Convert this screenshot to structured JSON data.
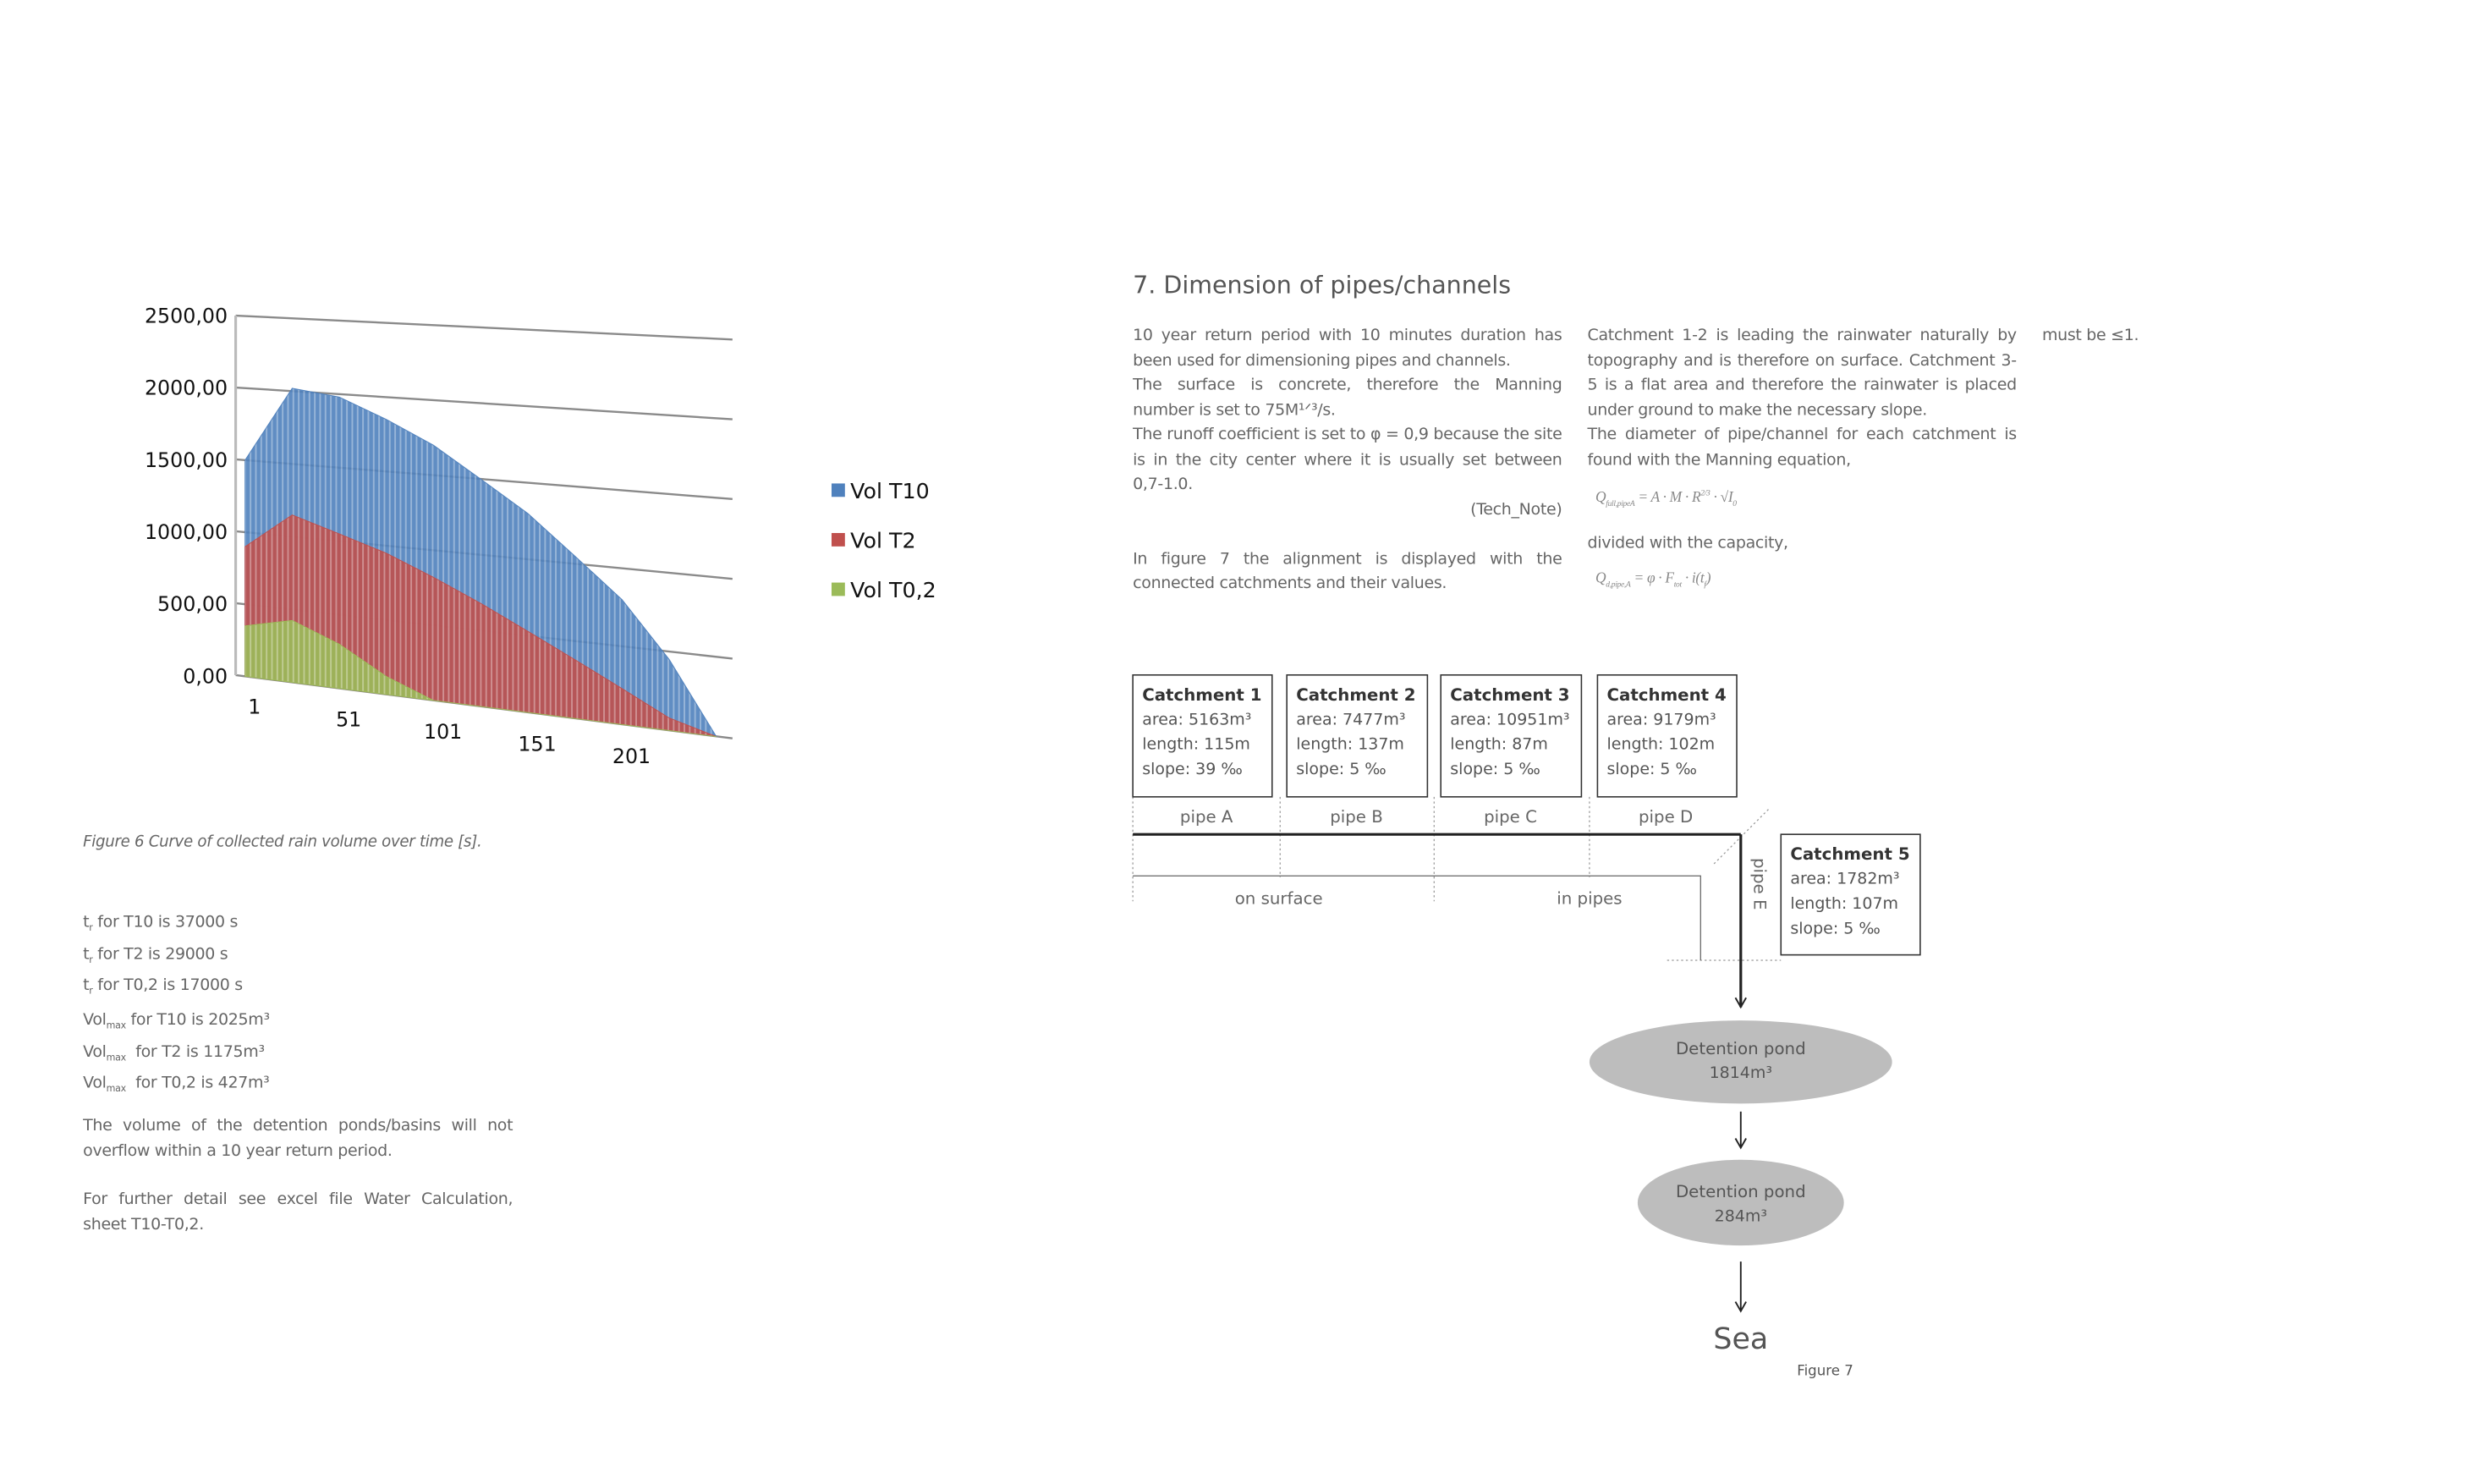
{
  "chart_data": {
    "type": "area",
    "x": [
      1,
      26,
      51,
      76,
      101,
      126,
      151,
      176,
      201,
      226,
      251
    ],
    "xlim": [
      1,
      251
    ],
    "xticks": [
      1,
      51,
      101,
      151,
      201
    ],
    "ylim": [
      0,
      2500
    ],
    "yticks": [
      {
        "value": 0,
        "label": "0,00"
      },
      {
        "value": 500,
        "label": "500,00"
      },
      {
        "value": 1000,
        "label": "1000,00"
      },
      {
        "value": 1500,
        "label": "1500,00"
      },
      {
        "value": 2000,
        "label": "2000,00"
      },
      {
        "value": 2500,
        "label": "2500,00"
      }
    ],
    "grid": true,
    "legend": "right",
    "series": [
      {
        "name": "Vol T10",
        "color": "#4f81bd",
        "values": [
          1500,
          2020,
          1980,
          1850,
          1700,
          1500,
          1300,
          1050,
          800,
          450,
          0
        ]
      },
      {
        "name": "Vol T2",
        "color": "#c0504d",
        "values": [
          900,
          1150,
          1050,
          950,
          820,
          680,
          530,
          380,
          230,
          80,
          0
        ]
      },
      {
        "name": "Vol T0,2",
        "color": "#9bbb59",
        "values": [
          350,
          425,
          300,
          120,
          0,
          0,
          0,
          0,
          0,
          0,
          0
        ]
      }
    ]
  },
  "figure6_caption": "Figure 6 Curve of collected rain volume over time [s].",
  "concentration_times": [
    {
      "symbol": "t",
      "sub": "r",
      "text": " for T10 is 37000 s"
    },
    {
      "symbol": "t",
      "sub": "r",
      "text": " for T2 is 29000 s"
    },
    {
      "symbol": "t",
      "sub": "r",
      "text": " for T0,2 is 17000 s"
    }
  ],
  "max_volumes": [
    {
      "symbol": "Vol",
      "sub": "max",
      "text": " for T10 is 2025m³"
    },
    {
      "symbol": "Vol",
      "sub": "max",
      "text": "  for T2 is 1175m³"
    },
    {
      "symbol": "Vol",
      "sub": "max",
      "text": "  for T0,2 is 427m³"
    }
  ],
  "left_paragraphs": [
    "The volume of the detention ponds/basins will not overflow within a 10 year return period.",
    "For further detail see excel file Water Calculation, sheet T10-T0,2."
  ],
  "section": {
    "heading": "7. Dimension of pipes/channels",
    "paragraphs": [
      "10 year return period with 10 minutes duration has been used for dimensioning pipes and channels.",
      "The surface is concrete, therefore the Manning number is set to 75M¹ᐟ³/s.",
      "The runoff coefficient is set to φ = 0,9 because the site is in the city center where it is usually set between 0,7-1.0."
    ],
    "source": "(Tech_Note)",
    "paragraphs2": [
      "In figure 7 the alignment is displayed with the connected catchments and their values.",
      "Catchment 1-2 is leading the rainwater naturally by topography and is therefore on surface. Catchment 3-5 is a flat area and therefore the rainwater is placed under ground to make the necessary slope.",
      "The diameter of pipe/channel for each catchment is found with the Manning equation,"
    ],
    "formula1": [
      "Q",
      "full,pipeA",
      " = A · M · R",
      "2/3",
      " · √I",
      "0"
    ],
    "text_after": "divided with the capacity,",
    "formula2": [
      "Q",
      "d,pipe,A",
      " = φ · F",
      "tot",
      " · i(t",
      "f",
      ")"
    ],
    "final": "must be ≤1."
  },
  "diagram": {
    "catchments": [
      {
        "title": "Catchment 1",
        "lines": [
          "area: 5163m³",
          "length: 115m",
          "slope: 39 ‰"
        ]
      },
      {
        "title": "Catchment 2",
        "lines": [
          "area: 7477m³",
          "length: 137m",
          "slope: 5 ‰"
        ]
      },
      {
        "title": "Catchment 3",
        "lines": [
          "area: 10951m³",
          "length: 87m",
          "slope: 5 ‰"
        ]
      },
      {
        "title": "Catchment 4",
        "lines": [
          "area: 9179m³",
          "length: 102m",
          "slope: 5 ‰"
        ]
      },
      {
        "title": "Catchment 5",
        "lines": [
          "area: 1782m³",
          "length: 107m",
          "slope: 5 ‰"
        ]
      }
    ],
    "pipes": [
      "pipe A",
      "pipe B",
      "pipe C",
      "pipe D",
      "pipe E"
    ],
    "zones": [
      "on surface",
      "in pipes"
    ],
    "ponds": [
      {
        "label": "Detention pond",
        "volume": "1814m³"
      },
      {
        "label": "Detention pond",
        "volume": "284m³"
      }
    ],
    "outlet": "Sea",
    "caption": "Figure 7"
  }
}
